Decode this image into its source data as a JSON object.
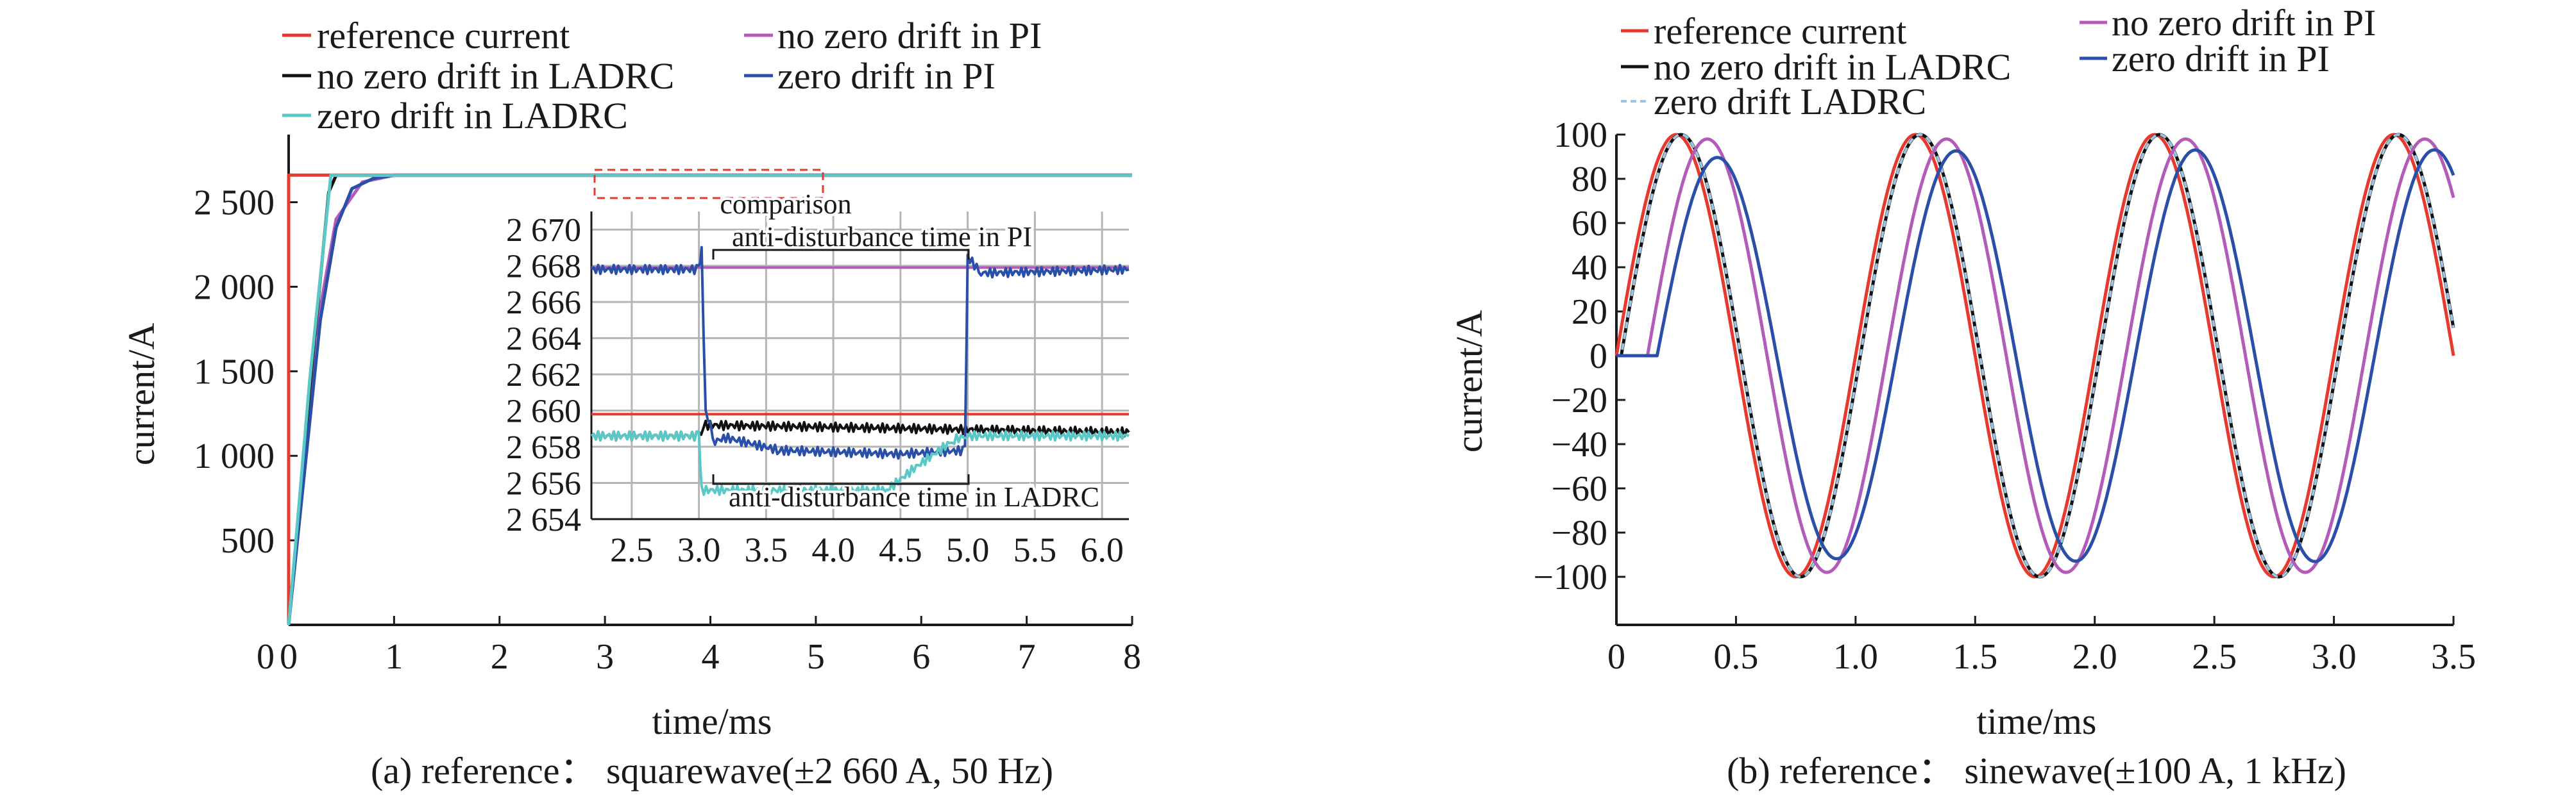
{
  "chart_data": [
    {
      "type": "line",
      "caption": "(a) reference： squarewave(±2 660 A, 50 Hz)",
      "xlabel": "time/ms",
      "ylabel": "current/A",
      "xlim": [
        0,
        8
      ],
      "ylim": [
        0,
        2900
      ],
      "xticks": [
        "0",
        "1",
        "2",
        "3",
        "4",
        "5",
        "6",
        "7",
        "8"
      ],
      "yticks": [
        "500",
        "1 000",
        "1 500",
        "2 000",
        "2 500"
      ],
      "grid": false,
      "legend_position": "top",
      "series": [
        {
          "name": "reference current",
          "color": "#e8392f",
          "points": [
            [
              0,
              0
            ],
            [
              0.0,
              2660
            ],
            [
              8,
              2660
            ]
          ]
        },
        {
          "name": "no zero drift in PI",
          "color": "#b25bb8",
          "points": [
            [
              0,
              0
            ],
            [
              0.25,
              1700
            ],
            [
              0.45,
              2400
            ],
            [
              0.7,
              2620
            ],
            [
              1.0,
              2659
            ],
            [
              8,
              2659
            ]
          ]
        },
        {
          "name": "no zero drift in LADRC",
          "color": "#111111",
          "points": [
            [
              0,
              0
            ],
            [
              0.2,
              1400
            ],
            [
              0.38,
              2560
            ],
            [
              0.45,
              2659
            ],
            [
              8,
              2659
            ]
          ]
        },
        {
          "name": "zero drift in PI",
          "color": "#2a4fa8",
          "points": [
            [
              0,
              0
            ],
            [
              0.3,
              1800
            ],
            [
              0.45,
              2350
            ],
            [
              0.6,
              2580
            ],
            [
              0.8,
              2640
            ],
            [
              1.0,
              2660
            ],
            [
              8,
              2660
            ]
          ]
        },
        {
          "name": "zero drift in LADRC",
          "color": "#5bc8c8",
          "points": [
            [
              0,
              0
            ],
            [
              0.2,
              1450
            ],
            [
              0.4,
              2659
            ],
            [
              8,
              2659
            ]
          ]
        }
      ],
      "annotations": [
        "comparison"
      ],
      "inset": {
        "xlim": [
          2.2,
          6.2
        ],
        "ylim": [
          2654,
          2671
        ],
        "xticks": [
          "2.5",
          "3.0",
          "3.5",
          "4.0",
          "4.5",
          "5.0",
          "5.5",
          "6.0"
        ],
        "yticks": [
          "2 654",
          "2 656",
          "2 658",
          "2 660",
          "2 662",
          "2 664",
          "2 666",
          "2 668",
          "2 670"
        ],
        "grid": true,
        "annotations": [
          "anti-disturbance time in PI",
          "anti-disturbance time in LADRC"
        ],
        "series": [
          {
            "name": "reference current",
            "color": "#e8392f",
            "points": [
              [
                2.2,
                2659.8
              ],
              [
                6.2,
                2659.8
              ]
            ]
          },
          {
            "name": "no zero drift in PI",
            "color": "#b25bb8",
            "points": [
              [
                2.2,
                2667.9
              ],
              [
                6.2,
                2667.9
              ]
            ]
          },
          {
            "name": "no zero drift in LADRC",
            "color": "#111111",
            "points": [
              [
                2.2,
                2658.6
              ],
              [
                3.0,
                2658.6
              ],
              [
                3.05,
                2659.2
              ],
              [
                6.2,
                2658.8
              ]
            ]
          },
          {
            "name": "zero drift in PI",
            "color": "#2a4fa8",
            "points": [
              [
                2.2,
                2667.8
              ],
              [
                3.0,
                2667.8
              ],
              [
                3.02,
                2668.8
              ],
              [
                3.05,
                2660
              ],
              [
                3.12,
                2658.3
              ],
              [
                3.2,
                2658.5
              ],
              [
                3.6,
                2657.8
              ],
              [
                4.5,
                2657.6
              ],
              [
                4.98,
                2657.8
              ],
              [
                5.0,
                2668.5
              ],
              [
                5.1,
                2667.6
              ],
              [
                6.2,
                2667.8
              ]
            ]
          },
          {
            "name": "zero drift in LADRC",
            "color": "#5bc8c8",
            "points": [
              [
                2.2,
                2658.6
              ],
              [
                3.0,
                2658.6
              ],
              [
                3.02,
                2655.6
              ],
              [
                4.4,
                2655.6
              ],
              [
                4.6,
                2656.8
              ],
              [
                4.9,
                2658.4
              ],
              [
                5.0,
                2658.6
              ],
              [
                6.2,
                2658.6
              ]
            ]
          }
        ]
      }
    },
    {
      "type": "line",
      "caption": "(b) reference： sinewave(±100 A, 1 kHz)",
      "xlabel": "time/ms",
      "ylabel": "current/A",
      "xlim": [
        0,
        3.5
      ],
      "ylim": [
        -120,
        100
      ],
      "xticks": [
        "0",
        "0.5",
        "1.0",
        "1.5",
        "2.0",
        "2.5",
        "3.0",
        "3.5"
      ],
      "yticks": [
        "100",
        "80",
        "60",
        "40",
        "20",
        "0",
        "−20",
        "−40",
        "−60",
        "−80",
        "−100"
      ],
      "grid": false,
      "legend_position": "top",
      "signal": {
        "frequency_khz": 1,
        "amplitude_a": 100
      },
      "series": [
        {
          "name": "reference current",
          "color": "#e8392f",
          "phase_lag_ms": 0.0,
          "amplitude": 100
        },
        {
          "name": "no zero drift in LADRC",
          "color": "#111111",
          "phase_lag_ms": 0.02,
          "amplitude": 100
        },
        {
          "name": "zero drift LADRC",
          "color": "#9fc4e2",
          "phase_lag_ms": 0.02,
          "amplitude": 100
        },
        {
          "name": "no zero drift in PI",
          "color": "#b25bb8",
          "phase_lag_ms": 0.13,
          "amplitude": 98
        },
        {
          "name": "zero drift in PI",
          "color": "#2a4fa8",
          "phase_lag_ms": 0.17,
          "amplitude": 98
        }
      ]
    }
  ],
  "legend_a": {
    "reference": "reference current",
    "pi_nozero": "no zero drift in PI",
    "ladrc_nozero": "no zero drift in LADRC",
    "pi_zero": "zero drift in PI",
    "ladrc_zero": "zero drift in LADRC"
  },
  "legend_b": {
    "reference": "reference current",
    "pi_nozero": "no zero drift in PI",
    "ladrc_nozero": "no zero drift in LADRC",
    "pi_zero": "zero drift in PI",
    "ladrc_zero": "zero drift LADRC"
  },
  "colors": {
    "reference": "#e8392f",
    "pi_nozero": "#b25bb8",
    "ladrc_nozero": "#111111",
    "pi_zero": "#2a4fa8",
    "ladrc_zero_a": "#5bc8c8",
    "ladrc_zero_b": "#9fc4e2"
  }
}
